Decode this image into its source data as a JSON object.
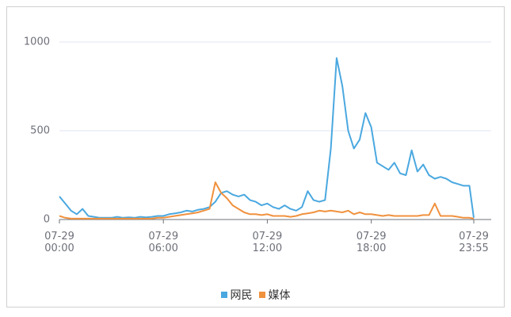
{
  "chart_data": {
    "type": "line",
    "x": [
      "07-29 00:00",
      "07-29 00:20",
      "07-29 00:40",
      "07-29 01:00",
      "07-29 01:20",
      "07-29 01:40",
      "07-29 02:00",
      "07-29 02:20",
      "07-29 02:40",
      "07-29 03:00",
      "07-29 03:20",
      "07-29 03:40",
      "07-29 04:00",
      "07-29 04:20",
      "07-29 04:40",
      "07-29 05:00",
      "07-29 05:20",
      "07-29 05:40",
      "07-29 06:00",
      "07-29 06:20",
      "07-29 06:40",
      "07-29 07:00",
      "07-29 07:20",
      "07-29 07:40",
      "07-29 08:00",
      "07-29 08:20",
      "07-29 08:40",
      "07-29 09:00",
      "07-29 09:20",
      "07-29 09:40",
      "07-29 10:00",
      "07-29 10:20",
      "07-29 10:40",
      "07-29 11:00",
      "07-29 11:20",
      "07-29 11:40",
      "07-29 12:00",
      "07-29 12:20",
      "07-29 12:40",
      "07-29 13:00",
      "07-29 13:20",
      "07-29 13:40",
      "07-29 14:00",
      "07-29 14:20",
      "07-29 14:40",
      "07-29 15:00",
      "07-29 15:20",
      "07-29 15:40",
      "07-29 16:00",
      "07-29 16:20",
      "07-29 16:40",
      "07-29 17:00",
      "07-29 17:20",
      "07-29 17:40",
      "07-29 18:00",
      "07-29 18:20",
      "07-29 18:40",
      "07-29 19:00",
      "07-29 19:20",
      "07-29 19:40",
      "07-29 20:00",
      "07-29 20:20",
      "07-29 20:40",
      "07-29 21:00",
      "07-29 21:20",
      "07-29 21:40",
      "07-29 22:00",
      "07-29 22:20",
      "07-29 22:40",
      "07-29 23:00",
      "07-29 23:20",
      "07-29 23:40",
      "07-29 23:55"
    ],
    "series": [
      {
        "name": "网民",
        "color": "#4aa8e0",
        "values": [
          130,
          90,
          50,
          30,
          60,
          20,
          15,
          10,
          10,
          10,
          15,
          10,
          12,
          10,
          15,
          12,
          15,
          20,
          20,
          30,
          35,
          40,
          50,
          45,
          55,
          60,
          70,
          100,
          150,
          160,
          140,
          130,
          140,
          110,
          100,
          80,
          90,
          70,
          60,
          80,
          60,
          50,
          70,
          160,
          110,
          100,
          110,
          400,
          910,
          750,
          500,
          400,
          450,
          600,
          520,
          320,
          300,
          280,
          320,
          260,
          250,
          390,
          270,
          310,
          250,
          230,
          240,
          230,
          210,
          200,
          190,
          190,
          10
        ]
      },
      {
        "name": "媒体",
        "color": "#f0913e",
        "values": [
          20,
          10,
          5,
          5,
          5,
          5,
          5,
          5,
          5,
          5,
          5,
          5,
          5,
          5,
          5,
          5,
          5,
          10,
          10,
          15,
          20,
          25,
          30,
          35,
          40,
          50,
          60,
          210,
          150,
          120,
          80,
          60,
          40,
          30,
          30,
          25,
          30,
          20,
          20,
          20,
          15,
          20,
          30,
          35,
          40,
          50,
          45,
          50,
          45,
          40,
          50,
          30,
          40,
          30,
          30,
          25,
          20,
          25,
          20,
          20,
          20,
          20,
          20,
          25,
          25,
          90,
          20,
          20,
          20,
          15,
          10,
          10,
          5
        ]
      }
    ],
    "xticks": [
      "07-29 00:00",
      "07-29 06:00",
      "07-29 12:00",
      "07-29 18:00",
      "07-29 23:55"
    ],
    "ylim": [
      0,
      1000
    ],
    "yticks": [
      0,
      500,
      1000
    ],
    "grid": true
  }
}
